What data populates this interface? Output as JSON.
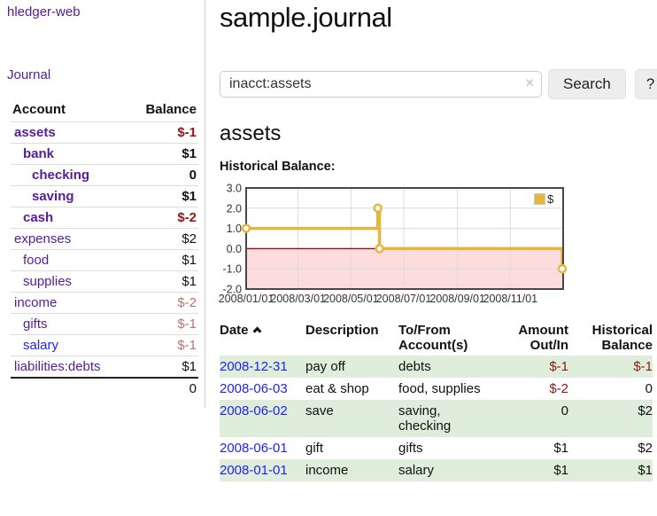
{
  "app": {
    "brand": "hledger-web",
    "nav_journal": "Journal"
  },
  "sidebar": {
    "columns": {
      "account": "Account",
      "balance": "Balance"
    },
    "accounts": [
      {
        "name": "assets",
        "balance": "$-1",
        "level": 0,
        "selected": true,
        "name_color": "purple",
        "balance_tone": "neg"
      },
      {
        "name": "bank",
        "balance": "$1",
        "level": 1,
        "selected": true,
        "name_color": "purple",
        "balance_tone": "normal"
      },
      {
        "name": "checking",
        "balance": "0",
        "level": 2,
        "selected": true,
        "name_color": "purple",
        "balance_tone": "normal"
      },
      {
        "name": "saving",
        "balance": "$1",
        "level": 2,
        "selected": true,
        "name_color": "purple",
        "balance_tone": "normal"
      },
      {
        "name": "cash",
        "balance": "$-2",
        "level": 1,
        "selected": true,
        "name_color": "purple",
        "balance_tone": "neg"
      },
      {
        "name": "expenses",
        "balance": "$2",
        "level": 0,
        "selected": false,
        "name_color": "purple",
        "balance_tone": "normal"
      },
      {
        "name": "food",
        "balance": "$1",
        "level": 1,
        "selected": false,
        "name_color": "purple",
        "balance_tone": "normal"
      },
      {
        "name": "supplies",
        "balance": "$1",
        "level": 1,
        "selected": false,
        "name_color": "purple",
        "balance_tone": "normal"
      },
      {
        "name": "income",
        "balance": "$-2",
        "level": 0,
        "selected": false,
        "name_color": "purple",
        "balance_tone": "neg-faded"
      },
      {
        "name": "gifts",
        "balance": "$-1",
        "level": 1,
        "selected": false,
        "name_color": "purple",
        "balance_tone": "neg-faded"
      },
      {
        "name": "salary",
        "balance": "$-1",
        "level": 1,
        "selected": false,
        "name_color": "blue",
        "balance_tone": "neg-faded"
      },
      {
        "name": "liabilities:debts",
        "balance": "$1",
        "level": 0,
        "selected": false,
        "name_color": "purple",
        "balance_tone": "normal"
      }
    ],
    "total": "0"
  },
  "header": {
    "title": "sample.journal"
  },
  "search": {
    "value": "inacct:assets",
    "clear_icon": "×",
    "button_label": "Search",
    "help_label": "?"
  },
  "account_page": {
    "title": "assets",
    "chart_label": "Historical Balance:"
  },
  "chart_data": {
    "type": "line",
    "subtype": "step-after",
    "title": "Historical Balance:",
    "series": [
      {
        "name": "$",
        "color": "#e4b63c",
        "points": [
          [
            "2008/01/01",
            1
          ],
          [
            "2008/06/01",
            2
          ],
          [
            "2008/06/03",
            0
          ],
          [
            "2008/12/31",
            -1
          ]
        ]
      }
    ],
    "xlim": [
      "2008/01/01",
      "2009/01/01"
    ],
    "ylim": [
      -2.0,
      3.0
    ],
    "yticks": [
      3.0,
      2.0,
      1.0,
      0.0,
      -1.0,
      -2.0
    ],
    "xticks": [
      "2008/01/01",
      "2008/03/01",
      "2008/05/01",
      "2008/07/01",
      "2008/09/01",
      "2008/11/01"
    ],
    "grid": true,
    "legend_position": "top-right",
    "legend_label": "$",
    "negative_region_fill": "#fcdcdc",
    "zero_line_color": "#9e1010",
    "border_color": "#474747",
    "grid_color": "#dcdcdc"
  },
  "register": {
    "headers": {
      "date": "Date",
      "description": "Description",
      "accounts": "To/From\nAccount(s)",
      "amount": "Amount\nOut/In",
      "balance": "Historical\nBalance"
    },
    "sort_icon": "chevron-up",
    "rows": [
      {
        "date": "2008-12-31",
        "description": "pay off",
        "accounts": "debts",
        "amount": "$-1",
        "balance": "$-1"
      },
      {
        "date": "2008-06-03",
        "description": "eat & shop",
        "accounts": "food, supplies",
        "amount": "$-2",
        "balance": "0"
      },
      {
        "date": "2008-06-02",
        "description": "save",
        "accounts": "saving,\nchecking",
        "amount": "0",
        "balance": "$2"
      },
      {
        "date": "2008-06-01",
        "description": "gift",
        "accounts": "gifts",
        "amount": "$1",
        "balance": "$2"
      },
      {
        "date": "2008-01-01",
        "description": "income",
        "accounts": "salary",
        "amount": "$1",
        "balance": "$1"
      }
    ]
  },
  "colors": {
    "link_purple": "#571c97",
    "link_blue": "#2222ee",
    "negative": "#941616",
    "negative_faded": "#bd7272",
    "row_highlight_green": "#deeedb",
    "chart_gold": "#e4b63c",
    "chart_negative_pink": "#fcdcdc",
    "chart_zero_line": "#9e1010"
  }
}
